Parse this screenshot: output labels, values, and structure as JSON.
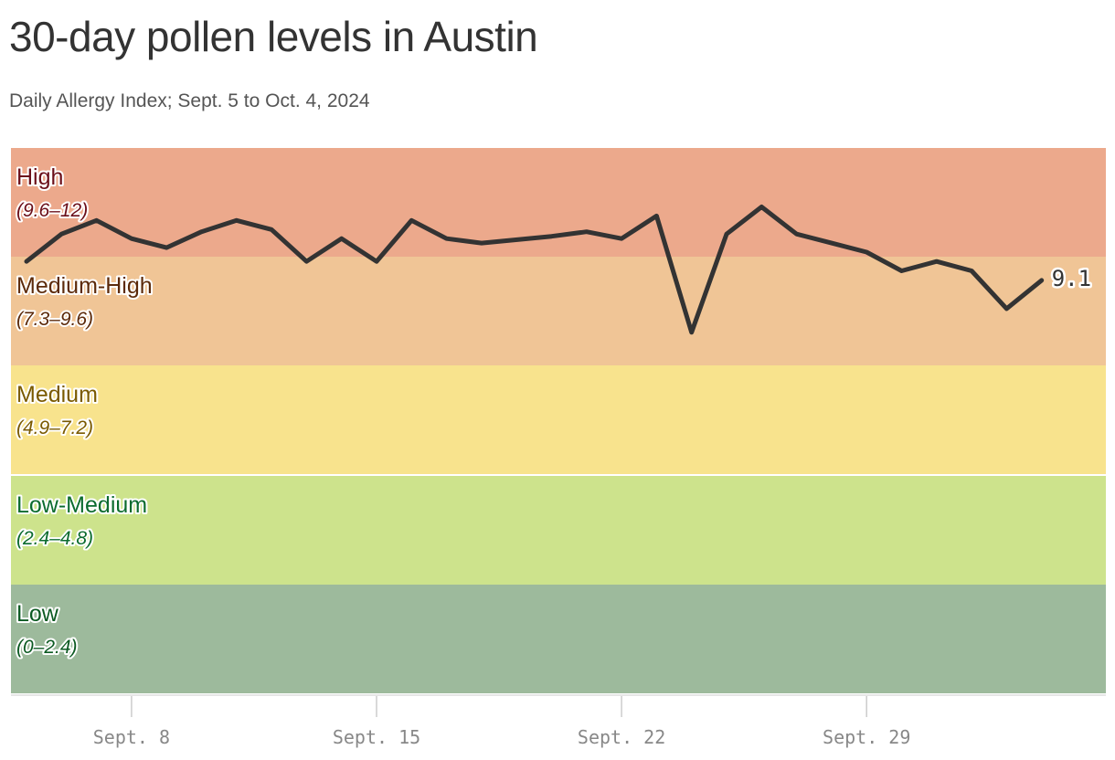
{
  "title": "30-day pollen levels in Austin",
  "subtitle": "Daily Allergy Index; Sept. 5 to Oct. 4, 2024",
  "chart_data": {
    "type": "line",
    "title": "30-day pollen levels in Austin",
    "subtitle": "Daily Allergy Index; Sept. 5 to Oct. 4, 2024",
    "xlabel": "",
    "ylabel": "",
    "ylim": [
      0,
      12
    ],
    "grid": false,
    "x_ticks": [
      {
        "day": "2024-09-08",
        "label": "Sept. 8"
      },
      {
        "day": "2024-09-15",
        "label": "Sept. 15"
      },
      {
        "day": "2024-09-22",
        "label": "Sept. 22"
      },
      {
        "day": "2024-09-29",
        "label": "Sept. 29"
      }
    ],
    "bands": [
      {
        "name": "High",
        "range": "(9.6–12)",
        "min": 9.6,
        "max": 12,
        "fill": "#eca98c",
        "text_color": "#6b0f1a"
      },
      {
        "name": "Medium-High",
        "range": "(7.3–9.6)",
        "min": 7.3,
        "max": 9.6,
        "fill": "#f0c596",
        "text_color": "#5c2a0a"
      },
      {
        "name": "Medium",
        "range": "(4.9–7.2)",
        "min": 4.9,
        "max": 7.3,
        "fill": "#f8e38d",
        "text_color": "#7a5a00"
      },
      {
        "name": "Low-Medium",
        "range": "(2.4–4.8)",
        "min": 2.4,
        "max": 4.9,
        "fill": "#cde38c",
        "text_color": "#0b6b2e"
      },
      {
        "name": "Low",
        "range": "(0–2.4)",
        "min": 0,
        "max": 2.4,
        "fill": "#9dba9c",
        "text_color": "#0c5a22"
      }
    ],
    "series": [
      {
        "line_color": "#333333",
        "points": [
          {
            "date": "2024-09-05",
            "value": 9.5
          },
          {
            "date": "2024-09-06",
            "value": 10.1
          },
          {
            "date": "2024-09-07",
            "value": 10.4
          },
          {
            "date": "2024-09-08",
            "value": 10.0
          },
          {
            "date": "2024-09-09",
            "value": 9.8
          },
          {
            "date": "2024-09-10",
            "value": 10.15
          },
          {
            "date": "2024-09-11",
            "value": 10.4
          },
          {
            "date": "2024-09-12",
            "value": 10.2
          },
          {
            "date": "2024-09-13",
            "value": 9.5
          },
          {
            "date": "2024-09-14",
            "value": 10.0
          },
          {
            "date": "2024-09-15",
            "value": 9.5
          },
          {
            "date": "2024-09-16",
            "value": 10.4
          },
          {
            "date": "2024-09-17",
            "value": 10.0
          },
          {
            "date": "2024-09-18",
            "value": 9.9
          },
          {
            "date": "2024-09-20",
            "value": 10.05
          },
          {
            "date": "2024-09-21",
            "value": 10.15
          },
          {
            "date": "2024-09-22",
            "value": 10.0
          },
          {
            "date": "2024-09-23",
            "value": 10.5
          },
          {
            "date": "2024-09-24",
            "value": 8.0
          },
          {
            "date": "2024-09-25",
            "value": 10.1
          },
          {
            "date": "2024-09-26",
            "value": 10.7
          },
          {
            "date": "2024-09-27",
            "value": 10.1
          },
          {
            "date": "2024-09-28",
            "value": 9.9
          },
          {
            "date": "2024-09-29",
            "value": 9.7
          },
          {
            "date": "2024-09-30",
            "value": 9.3
          },
          {
            "date": "2024-10-01",
            "value": 9.5
          },
          {
            "date": "2024-10-02",
            "value": 9.3
          },
          {
            "date": "2024-10-03",
            "value": 8.5
          },
          {
            "date": "2024-10-04",
            "value": 9.1
          }
        ]
      }
    ],
    "end_label": "9.1"
  }
}
